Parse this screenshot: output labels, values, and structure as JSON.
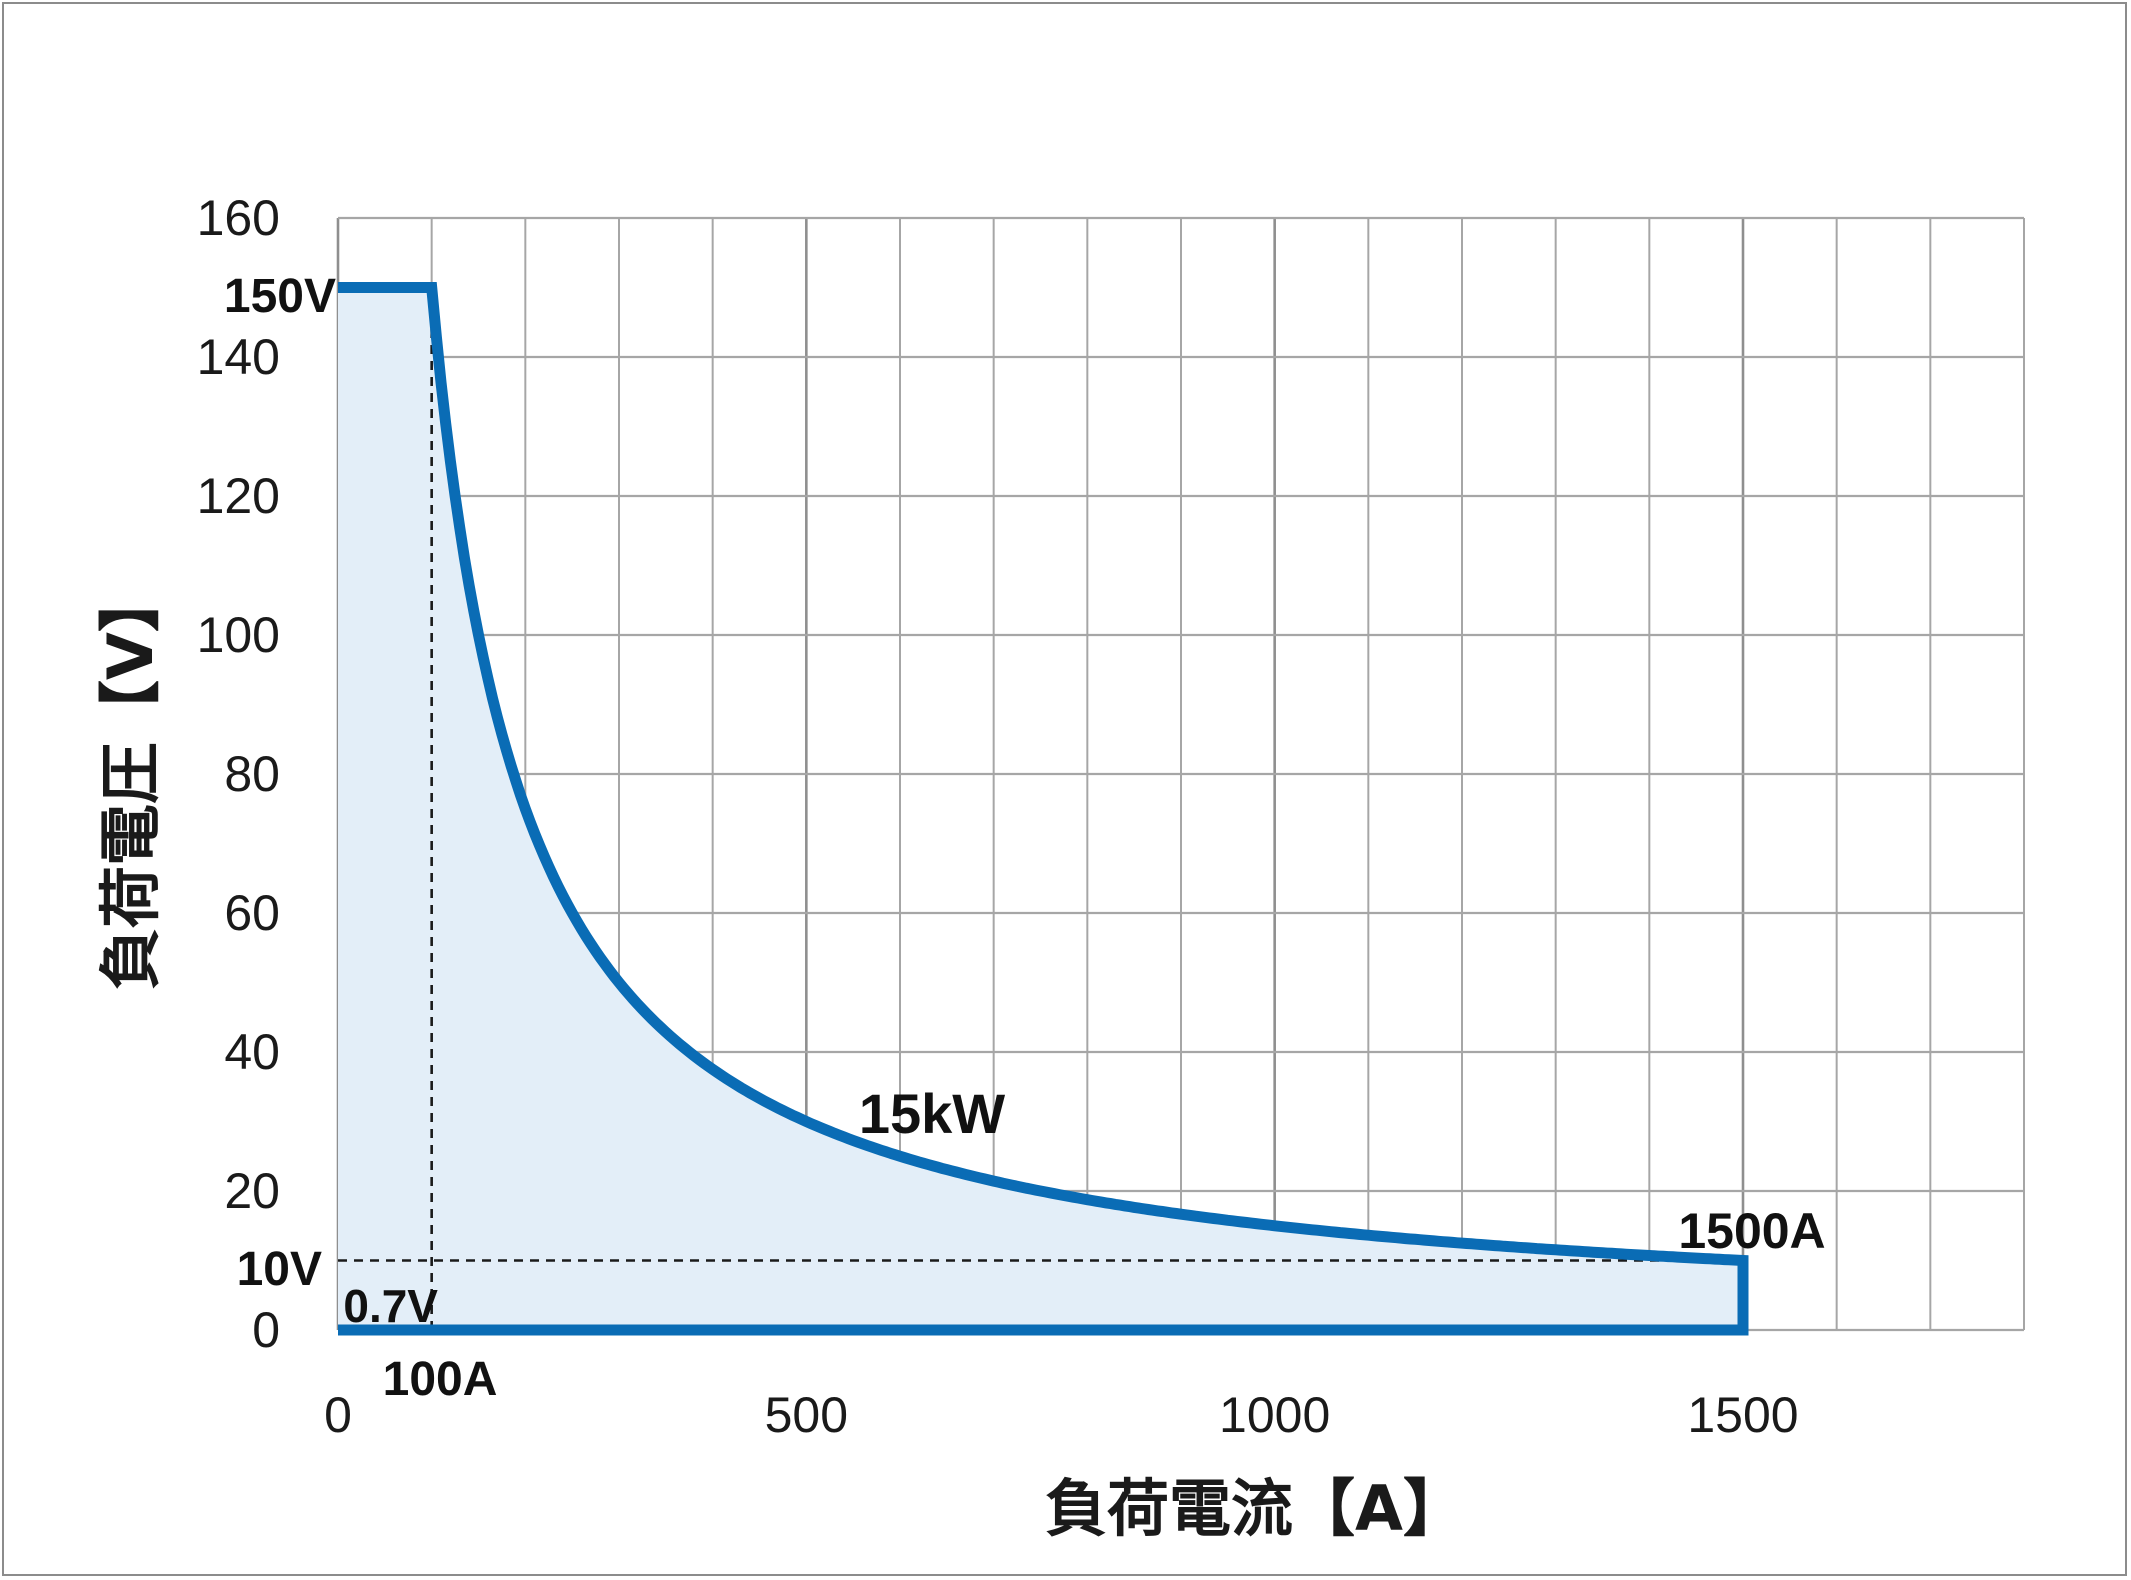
{
  "chart_data": {
    "type": "area",
    "xlabel": "負荷電流【A】",
    "ylabel": "負荷電圧【V】",
    "xlim": [
      0,
      1800
    ],
    "ylim": [
      0,
      160
    ],
    "xticks": [
      0,
      500,
      1000,
      1500
    ],
    "yticks": [
      0,
      20,
      40,
      60,
      80,
      100,
      120,
      140,
      160
    ],
    "grid": true,
    "x_minor_step": 100,
    "y_grid_step": 20,
    "boundary": [
      {
        "x": 0,
        "y": 150
      },
      {
        "x": 100,
        "y": 150
      },
      {
        "x": 100,
        "y": 150
      },
      {
        "x": 200,
        "y": 75
      },
      {
        "x": 300,
        "y": 50
      },
      {
        "x": 400,
        "y": 37.5
      },
      {
        "x": 500,
        "y": 30
      },
      {
        "x": 600,
        "y": 25
      },
      {
        "x": 700,
        "y": 21.4
      },
      {
        "x": 800,
        "y": 18.75
      },
      {
        "x": 900,
        "y": 16.7
      },
      {
        "x": 1000,
        "y": 15
      },
      {
        "x": 1100,
        "y": 13.6
      },
      {
        "x": 1200,
        "y": 12.5
      },
      {
        "x": 1300,
        "y": 11.5
      },
      {
        "x": 1400,
        "y": 10.7
      },
      {
        "x": 1500,
        "y": 10
      },
      {
        "x": 1500,
        "y": 0
      },
      {
        "x": 0,
        "y": 0
      }
    ],
    "power_curve_kw": 15,
    "reference_lines": [
      {
        "orientation": "vertical",
        "x": 100,
        "from_y": 0,
        "to_y": 150
      },
      {
        "orientation": "horizontal",
        "y": 10,
        "from_x": 0,
        "to_x": 1500
      }
    ],
    "annotations": [
      {
        "text": "150V",
        "x": 0,
        "y": 150,
        "anchor": "end"
      },
      {
        "text": "10V",
        "x": 0,
        "y": 10,
        "anchor": "end"
      },
      {
        "text": "0.7V",
        "x": 100,
        "y": 0.7,
        "anchor": "end"
      },
      {
        "text": "100A",
        "x": 100,
        "y": 0,
        "anchor": "middle"
      },
      {
        "text": "15kW",
        "x": 650,
        "y": 30,
        "anchor": "middle"
      },
      {
        "text": "1500A",
        "x": 1500,
        "y": 10,
        "anchor": "middle"
      }
    ],
    "colors": {
      "line": "#0a6cb5",
      "fill": "#e3eef8",
      "grid": "#a6a6a6",
      "reference": "#1a1a1a"
    }
  }
}
